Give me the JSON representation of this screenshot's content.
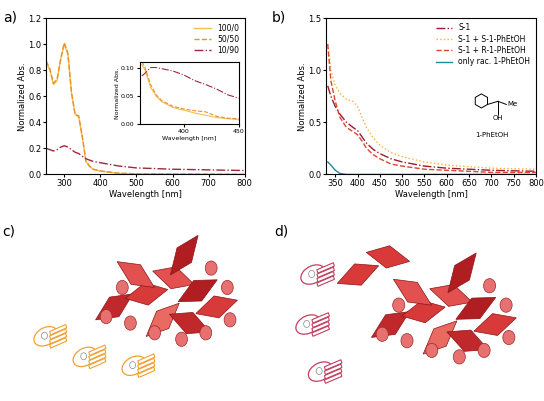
{
  "chart_data": [
    {
      "type": "line",
      "title": "a)",
      "x_label": "Wavelength [nm]",
      "y_label": "Normalized Abs.",
      "x": [
        250,
        260,
        270,
        280,
        290,
        300,
        310,
        320,
        330,
        340,
        350,
        360,
        370,
        380,
        400,
        450,
        500,
        600,
        700,
        800
      ],
      "series": [
        {
          "name": "100/0",
          "color": "#f2c14e",
          "line_style": "solid",
          "values": [
            0.86,
            0.8,
            0.69,
            0.72,
            0.88,
            1.0,
            0.92,
            0.62,
            0.46,
            0.44,
            0.28,
            0.1,
            0.06,
            0.04,
            0.025,
            0.008,
            0.004,
            0.002,
            0.001,
            0.0
          ]
        },
        {
          "name": "50/50",
          "color": "#e8912d",
          "line_style": "dashed",
          "values": [
            0.87,
            0.81,
            0.7,
            0.73,
            0.89,
            1.01,
            0.93,
            0.63,
            0.46,
            0.45,
            0.29,
            0.1,
            0.065,
            0.04,
            0.027,
            0.01,
            0.005,
            0.003,
            0.002,
            0.001
          ]
        },
        {
          "name": "10/90",
          "color": "#a0283c",
          "line_style": "dashdot",
          "values": [
            0.2,
            0.19,
            0.18,
            0.19,
            0.21,
            0.22,
            0.21,
            0.19,
            0.17,
            0.16,
            0.14,
            0.12,
            0.11,
            0.1,
            0.09,
            0.065,
            0.05,
            0.04,
            0.035,
            0.03
          ]
        }
      ],
      "xlim": [
        250,
        800
      ],
      "xticks": [
        300,
        400,
        500,
        600,
        700,
        800
      ],
      "ylim": [
        0.0,
        1.2
      ],
      "yticks": [
        {
          "value": 0.0,
          "label": "0.0"
        },
        {
          "value": 0.2,
          "label": "0.2"
        },
        {
          "value": 0.4,
          "label": "0.4"
        },
        {
          "value": 0.6,
          "label": "0.6"
        },
        {
          "value": 0.8,
          "label": "0.8"
        },
        {
          "value": 1.0,
          "label": "1.0"
        },
        {
          "value": 1.2,
          "label": "1.2"
        }
      ],
      "legend": "upper right"
    },
    {
      "type": "line",
      "x_label": "Wavelength [nm]",
      "y_label": "Normalized Abs.",
      "x": [
        362,
        365,
        370,
        375,
        380,
        390,
        400,
        410,
        420,
        430,
        440,
        450
      ],
      "series": [
        {
          "name": "100/0",
          "color": "#f2c14e",
          "line_style": "solid",
          "values": [
            0.105,
            0.095,
            0.065,
            0.05,
            0.04,
            0.03,
            0.025,
            0.02,
            0.016,
            0.012,
            0.01,
            0.008
          ]
        },
        {
          "name": "50/50",
          "color": "#e8912d",
          "line_style": "dashed",
          "values": [
            0.11,
            0.1,
            0.07,
            0.052,
            0.042,
            0.032,
            0.027,
            0.024,
            0.022,
            0.014,
            0.011,
            0.01
          ]
        },
        {
          "name": "10/90",
          "color": "#a0283c",
          "line_style": "dashdot",
          "values": [
            0.085,
            0.09,
            0.1,
            0.1,
            0.098,
            0.094,
            0.087,
            0.077,
            0.07,
            0.062,
            0.052,
            0.046
          ]
        }
      ],
      "xlim": [
        360,
        450
      ],
      "xticks": [
        400,
        450
      ],
      "ylim": [
        0.0,
        0.11
      ],
      "yticks": [
        {
          "value": 0.0,
          "label": "0.00"
        },
        {
          "value": 0.05,
          "label": "0.05"
        },
        {
          "value": 0.1,
          "label": "0.10"
        }
      ]
    },
    {
      "type": "line",
      "title": "b)",
      "x_label": "Wavelength [nm]",
      "y_label": "Normalized Abs.",
      "x": [
        333,
        340,
        350,
        360,
        375,
        390,
        400,
        410,
        420,
        435,
        450,
        475,
        500,
        550,
        600,
        650,
        700,
        750,
        800
      ],
      "series": [
        {
          "name": "S-1",
          "color": "#9b1b30",
          "line_style": "dashdot",
          "values": [
            0.85,
            0.75,
            0.65,
            0.58,
            0.5,
            0.45,
            0.42,
            0.36,
            0.3,
            0.24,
            0.2,
            0.15,
            0.12,
            0.08,
            0.06,
            0.05,
            0.04,
            0.035,
            0.03
          ]
        },
        {
          "name": "S-1 + S-1-PhEtOH",
          "color": "#f5b041",
          "line_style": "dotted",
          "values": [
            1.25,
            1.0,
            0.85,
            0.78,
            0.72,
            0.7,
            0.65,
            0.55,
            0.45,
            0.35,
            0.28,
            0.21,
            0.17,
            0.12,
            0.09,
            0.075,
            0.06,
            0.055,
            0.05
          ]
        },
        {
          "name": "S-1 + R-1-PhEtOH",
          "color": "#e0442c",
          "line_style": "dashed",
          "values": [
            1.25,
            0.9,
            0.7,
            0.55,
            0.45,
            0.41,
            0.38,
            0.32,
            0.25,
            0.19,
            0.15,
            0.1,
            0.08,
            0.05,
            0.04,
            0.03,
            0.02,
            0.02,
            0.02
          ]
        },
        {
          "name": "only rac. 1-PhEtOH",
          "color": "#1f8a99",
          "line_style": "solid",
          "values": [
            0.12,
            0.09,
            0.04,
            0.01,
            0.0,
            0.0,
            0.0,
            0.0,
            0.0,
            0.0,
            0.0,
            0.0,
            0.0,
            0.0,
            0.0,
            0.0,
            0.0,
            0.0,
            0.0
          ]
        }
      ],
      "xlim": [
        330,
        800
      ],
      "xticks": [
        350,
        400,
        450,
        500,
        550,
        600,
        650,
        700,
        750,
        800
      ],
      "ylim": [
        0.0,
        1.5
      ],
      "yticks": [
        {
          "value": 0.0,
          "label": "0.0"
        },
        {
          "value": 0.5,
          "label": "0.5"
        },
        {
          "value": 1.0,
          "label": "1.0"
        },
        {
          "value": 1.5,
          "label": "1.5"
        }
      ],
      "legend": "upper right",
      "annotations": [
        "Me",
        "OH",
        "1-PhEtOH"
      ]
    }
  ],
  "illustrations": [
    {
      "label": "c)"
    },
    {
      "label": "d)"
    }
  ]
}
